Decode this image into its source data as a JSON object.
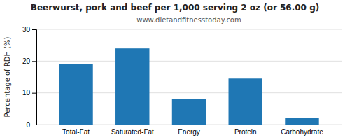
{
  "chart_data": {
    "type": "bar",
    "title": "Beerwurst, pork and beef per 1,000 serving 2 oz (or 56.00 g)",
    "subtitle": "www.dietandfitnesstoday.com",
    "categories": [
      "Total-Fat",
      "Saturated-Fat",
      "Energy",
      "Protein",
      "Carbohydrate"
    ],
    "values": [
      19.0,
      24.0,
      8.0,
      14.5,
      2.0
    ],
    "ylabel": "Percentage of RDH (%)",
    "ylim": [
      0,
      30
    ],
    "yticks": [
      0,
      10,
      20,
      30
    ],
    "grid": true
  }
}
